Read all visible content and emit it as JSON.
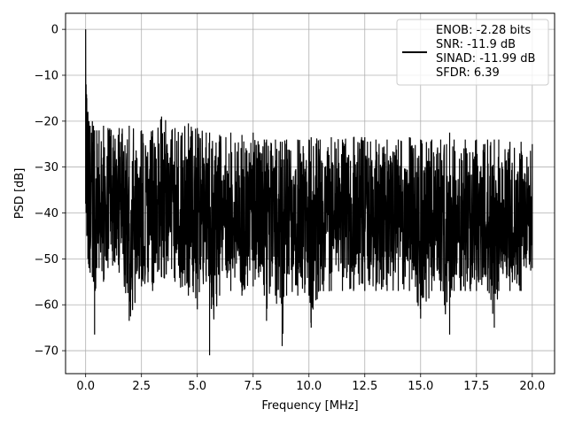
{
  "chart_data": {
    "type": "line",
    "title": "",
    "xlabel": "Frequency [MHz]",
    "ylabel": "PSD [dB]",
    "xlim": [
      -0.9,
      21.0
    ],
    "ylim": [
      -75,
      3.5
    ],
    "x_ticks": [
      0.0,
      2.5,
      5.0,
      7.5,
      10.0,
      12.5,
      15.0,
      17.5,
      20.0
    ],
    "x_tick_labels": [
      "0.0",
      "2.5",
      "5.0",
      "7.5",
      "10.0",
      "12.5",
      "15.0",
      "17.5",
      "20.0"
    ],
    "y_ticks": [
      0,
      -10,
      -20,
      -30,
      -40,
      -50,
      -60,
      -70
    ],
    "y_tick_labels": [
      "0",
      "−10",
      "−20",
      "−30",
      "−40",
      "−50",
      "−60",
      "−70"
    ],
    "grid": true,
    "legend_placement": "top-right",
    "legend_lines": [
      "ENOB: -2.28 bits",
      "SNR: -11.9 dB",
      "SINAD: -11.99 dB",
      "SFDR: 6.39"
    ],
    "series": [
      {
        "color": "#000000",
        "x": [
          0.0,
          0.02,
          0.05,
          0.1,
          0.15,
          0.2,
          0.3,
          0.35,
          0.4,
          0.5,
          0.6,
          0.8,
          1.0,
          1.5,
          1.95,
          2.5,
          3.0,
          3.4,
          4.0,
          4.6,
          5.0,
          5.4,
          5.55,
          6.0,
          6.5,
          7.0,
          7.5,
          8.0,
          8.1,
          8.5,
          8.8,
          9.0,
          9.5,
          10.0,
          10.1,
          10.5,
          11.0,
          11.5,
          12.0,
          12.5,
          13.0,
          13.5,
          14.0,
          14.5,
          15.0,
          15.5,
          15.9,
          16.3,
          16.5,
          17.0,
          17.5,
          18.0,
          18.3,
          18.5,
          19.0,
          19.5,
          20.0
        ],
        "y_upper": [
          0.0,
          -12.0,
          -15.0,
          -18.0,
          -20.0,
          -21.0,
          -20.0,
          -21.0,
          -22.0,
          -22.0,
          -22.0,
          -21.0,
          -21.5,
          -21.5,
          -21.0,
          -22.0,
          -22.0,
          -19.0,
          -21.5,
          -20.5,
          -21.5,
          -22.5,
          -22.5,
          -23.0,
          -22.5,
          -23.0,
          -22.5,
          -24.0,
          -24.0,
          -24.0,
          -24.5,
          -24.0,
          -24.0,
          -24.0,
          -23.5,
          -24.0,
          -23.5,
          -24.0,
          -23.5,
          -23.5,
          -24.0,
          -24.0,
          -24.0,
          -23.5,
          -24.0,
          -24.0,
          -24.0,
          -22.5,
          -24.0,
          -24.0,
          -24.0,
          -24.0,
          -24.0,
          -24.0,
          -24.5,
          -24.5,
          -25.0
        ],
        "y_lower": [
          -38.0,
          -40.0,
          -45.0,
          -50.0,
          -52.0,
          -53.0,
          -54.0,
          -55.0,
          -66.5,
          -52.0,
          -52.0,
          -55.0,
          -52.0,
          -53.0,
          -63.5,
          -56.0,
          -57.0,
          -54.0,
          -55.0,
          -58.0,
          -61.0,
          -55.0,
          -71.0,
          -58.0,
          -57.0,
          -58.0,
          -56.0,
          -58.0,
          -63.5,
          -58.0,
          -69.0,
          -58.0,
          -58.0,
          -58.0,
          -65.0,
          -57.0,
          -57.0,
          -57.0,
          -57.0,
          -57.0,
          -57.0,
          -57.0,
          -57.0,
          -57.0,
          -63.0,
          -57.0,
          -57.0,
          -66.5,
          -57.0,
          -57.0,
          -57.0,
          -57.0,
          -65.0,
          -57.0,
          -57.0,
          -57.0,
          -52.0
        ]
      }
    ]
  }
}
